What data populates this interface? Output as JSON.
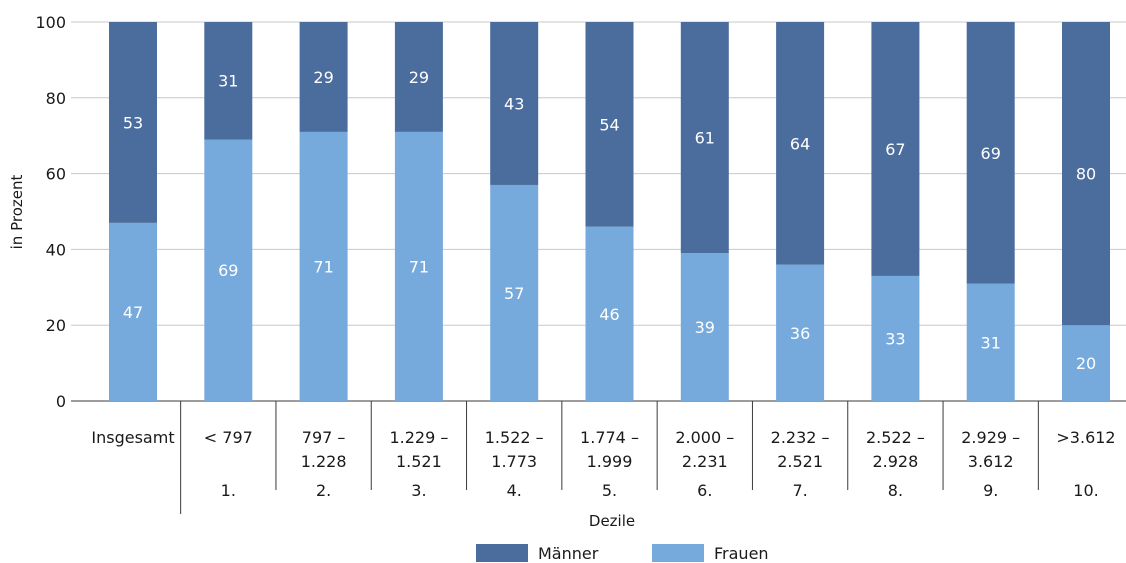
{
  "chart_data": {
    "type": "bar",
    "stacked": true,
    "ylabel": "in Prozent",
    "xlabel": "Dezile",
    "ylim": [
      0,
      100
    ],
    "yticks": [
      0,
      20,
      40,
      60,
      80,
      100
    ],
    "grid": true,
    "legend_position": "bottom",
    "categories": [
      {
        "lines": [
          "Insgesamt"
        ],
        "dezil": ""
      },
      {
        "lines": [
          "< 797"
        ],
        "dezil": "1."
      },
      {
        "lines": [
          "797 –",
          "1.228"
        ],
        "dezil": "2."
      },
      {
        "lines": [
          "1.229 –",
          "1.521"
        ],
        "dezil": "3."
      },
      {
        "lines": [
          "1.522 –",
          "1.773"
        ],
        "dezil": "4."
      },
      {
        "lines": [
          "1.774 –",
          "1.999"
        ],
        "dezil": "5."
      },
      {
        "lines": [
          "2.000 –",
          "2.231"
        ],
        "dezil": "6."
      },
      {
        "lines": [
          "2.232 –",
          "2.521"
        ],
        "dezil": "7."
      },
      {
        "lines": [
          "2.522 –",
          "2.928"
        ],
        "dezil": "8."
      },
      {
        "lines": [
          "2.929 –",
          "3.612"
        ],
        "dezil": "9."
      },
      {
        "lines": [
          ">3.612"
        ],
        "dezil": "10."
      }
    ],
    "series": [
      {
        "name": "Frauen",
        "color": "#77aadc",
        "values": [
          47,
          69,
          71,
          71,
          57,
          46,
          39,
          36,
          33,
          31,
          20
        ]
      },
      {
        "name": "Männer",
        "color": "#4a6d9d",
        "values": [
          53,
          31,
          29,
          29,
          43,
          54,
          61,
          64,
          67,
          69,
          80
        ]
      }
    ],
    "legend_order": [
      "Männer",
      "Frauen"
    ]
  }
}
